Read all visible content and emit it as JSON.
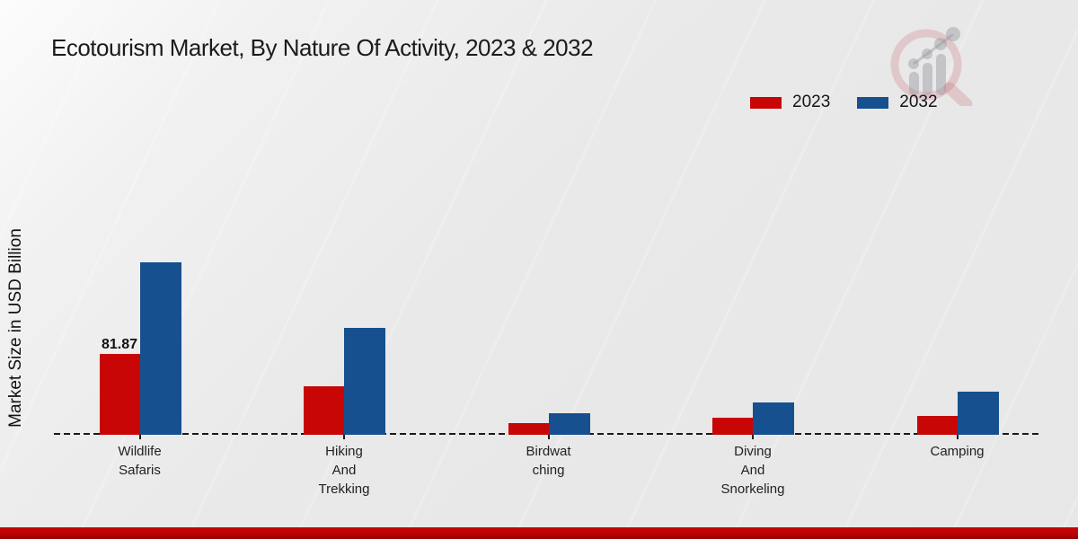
{
  "title": "Ecotourism Market, By Nature Of Activity, 2023 & 2032",
  "y_axis_label": "Market Size in USD Billion",
  "legend": {
    "items": [
      {
        "label": "2023",
        "color": "#c80606"
      },
      {
        "label": "2032",
        "color": "#17508f"
      }
    ],
    "position": "top-right"
  },
  "logo": {
    "name": "magnifier-growth-logo"
  },
  "footer": {
    "bar_color": "#b80202"
  },
  "chart_data": {
    "type": "bar",
    "title": "Ecotourism Market, By Nature Of Activity, 2023 & 2032",
    "xlabel": "",
    "ylabel": "Market Size in USD Billion",
    "categories": [
      "Wildlife Safaris",
      "Hiking And Trekking",
      "Birdwatching",
      "Diving And Snorkeling",
      "Camping"
    ],
    "category_display_lines": [
      [
        "Wildlife",
        "Safaris"
      ],
      [
        "Hiking",
        "And",
        "Trekking"
      ],
      [
        "Birdwat",
        "ching"
      ],
      [
        "Diving",
        "And",
        "Snorkeling"
      ],
      [
        "Camping"
      ]
    ],
    "series": [
      {
        "name": "2023",
        "color": "#c80606",
        "values": [
          81.87,
          49.5,
          12,
          17.5,
          19
        ]
      },
      {
        "name": "2032",
        "color": "#17508f",
        "values": [
          175,
          108.5,
          22,
          33,
          44
        ]
      }
    ],
    "annotations": [
      {
        "series_index": 0,
        "category_index": 0,
        "text": "81.87"
      }
    ],
    "ylim": [
      0,
      195
    ],
    "grid": false,
    "baseline_style": "dashed",
    "legend_position": "top-right"
  }
}
